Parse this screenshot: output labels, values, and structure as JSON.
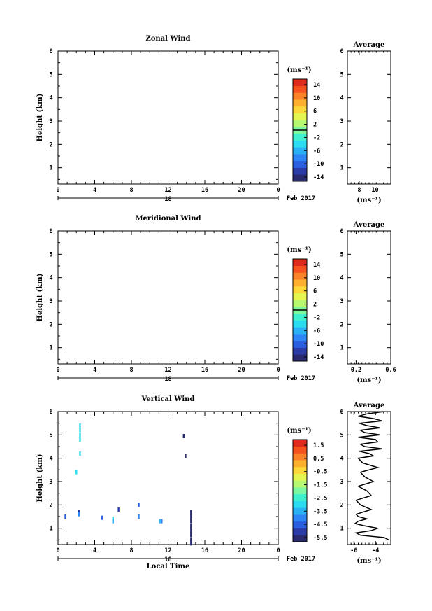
{
  "panels": [
    {
      "title": "Zonal Wind",
      "ylabel": "Height (km)",
      "yticks": [
        "1",
        "2",
        "3",
        "4",
        "5",
        "6"
      ],
      "xticks": [
        "0",
        "4",
        "8",
        "12",
        "16",
        "20",
        "0"
      ],
      "day": "18",
      "date_label": "Feb 2017",
      "cbar_unit": "(ms⁻¹)",
      "cbar_labels": [
        "14",
        "10",
        "6",
        "2",
        "-2",
        "-6",
        "-10",
        "-14"
      ],
      "avg_title": "Average",
      "avg_xticks": [
        "8",
        "10"
      ],
      "avg_xlabel": "(ms⁻¹)",
      "avg_yticks": [
        "1",
        "2",
        "3",
        "4",
        "5",
        "6"
      ]
    },
    {
      "title": "Meridional Wind",
      "ylabel": "Height (km)",
      "yticks": [
        "1",
        "2",
        "3",
        "4",
        "5",
        "6"
      ],
      "xticks": [
        "0",
        "4",
        "8",
        "12",
        "16",
        "20",
        "0"
      ],
      "day": "18",
      "date_label": "Feb 2017",
      "cbar_unit": "(ms⁻¹)",
      "cbar_labels": [
        "14",
        "10",
        "6",
        "2",
        "-2",
        "-6",
        "-10",
        "-14"
      ],
      "avg_title": "Average",
      "avg_xticks": [
        "0.2",
        "0.6"
      ],
      "avg_xlabel": "(ms⁻¹)",
      "avg_yticks": [
        "1",
        "2",
        "3",
        "4",
        "5",
        "6"
      ]
    },
    {
      "title": "Vertical Wind",
      "ylabel": "Height (km)",
      "xlabel": "Local Time",
      "yticks": [
        "1",
        "2",
        "3",
        "4",
        "5",
        "6"
      ],
      "xticks": [
        "0",
        "4",
        "8",
        "12",
        "16",
        "20",
        "0"
      ],
      "day": "18",
      "date_label": "Feb 2017",
      "cbar_unit": "(ms⁻¹)",
      "cbar_labels": [
        "1.5",
        "0.5",
        "-0.5",
        "-1.5",
        "-2.5",
        "-3.5",
        "-4.5",
        "-5.5"
      ],
      "avg_title": "Average",
      "avg_xticks": [
        "-6",
        "-4"
      ],
      "avg_xlabel": "(ms⁻¹)",
      "avg_yticks": [
        "1",
        "2",
        "3",
        "4",
        "5",
        "6"
      ]
    }
  ],
  "chart_data": [
    {
      "type": "heatmap",
      "title": "Zonal Wind",
      "xlabel": "",
      "ylabel": "Height (km)",
      "xlim": [
        0,
        24
      ],
      "ylim": [
        0.3,
        6.0
      ],
      "clim": [
        -16,
        16
      ],
      "cmap_colors": [
        "#2a2a6e",
        "#2b3ca8",
        "#2a5fe0",
        "#2d86f5",
        "#28b2f5",
        "#2adcf0",
        "#3ff0cf",
        "#7bf7a0",
        "#b6f970",
        "#e5f550",
        "#fcd838",
        "#fdb02e",
        "#fb8226",
        "#f5521e",
        "#e02a1e"
      ],
      "cells": [],
      "average": {
        "x": [],
        "y": [],
        "xlim": [
          6.5,
          12
        ]
      }
    },
    {
      "type": "heatmap",
      "title": "Meridional Wind",
      "xlabel": "",
      "ylabel": "Height (km)",
      "xlim": [
        0,
        24
      ],
      "ylim": [
        0.3,
        6.0
      ],
      "clim": [
        -16,
        16
      ],
      "cmap_colors": [
        "#2a2a6e",
        "#2b3ca8",
        "#2a5fe0",
        "#2d86f5",
        "#28b2f5",
        "#2adcf0",
        "#3ff0cf",
        "#7bf7a0",
        "#b6f970",
        "#e5f550",
        "#fcd838",
        "#fdb02e",
        "#fb8226",
        "#f5521e",
        "#e02a1e"
      ],
      "cells": [],
      "average": {
        "x": [],
        "y": [],
        "xlim": [
          0.1,
          0.6
        ]
      }
    },
    {
      "type": "heatmap",
      "title": "Vertical Wind",
      "xlabel": "Local Time",
      "ylabel": "Height (km)",
      "xlim": [
        0,
        24
      ],
      "ylim": [
        0.3,
        6.0
      ],
      "clim": [
        -6,
        2
      ],
      "cmap_colors": [
        "#2a2a6e",
        "#2b3ca8",
        "#2a5fe0",
        "#2d86f5",
        "#28b2f5",
        "#2adcf0",
        "#3ff0cf",
        "#7bf7a0",
        "#b6f970",
        "#e5f550",
        "#fcd838",
        "#fdb02e",
        "#fb8226",
        "#f5521e",
        "#e02a1e"
      ],
      "cells": [
        {
          "t": 2.4,
          "h": 5.4,
          "v": -3.0
        },
        {
          "t": 2.4,
          "h": 5.2,
          "v": -3.0
        },
        {
          "t": 2.4,
          "h": 5.0,
          "v": -3.0
        },
        {
          "t": 2.4,
          "h": 4.8,
          "v": -3.0
        },
        {
          "t": 2.4,
          "h": 4.2,
          "v": -3.2
        },
        {
          "t": 2.0,
          "h": 3.4,
          "v": -3.0
        },
        {
          "t": 13.7,
          "h": 4.95,
          "v": -5.5
        },
        {
          "t": 13.9,
          "h": 4.1,
          "v": -5.6
        },
        {
          "t": 0.8,
          "h": 1.5,
          "v": -4.7
        },
        {
          "t": 2.3,
          "h": 1.7,
          "v": -5.0
        },
        {
          "t": 2.3,
          "h": 1.6,
          "v": -4.2
        },
        {
          "t": 4.8,
          "h": 1.45,
          "v": -4.5
        },
        {
          "t": 6.0,
          "h": 1.4,
          "v": -3.2
        },
        {
          "t": 6.0,
          "h": 1.3,
          "v": -3.4
        },
        {
          "t": 6.6,
          "h": 1.8,
          "v": -5.2
        },
        {
          "t": 8.8,
          "h": 2.0,
          "v": -4.8
        },
        {
          "t": 8.8,
          "h": 1.5,
          "v": -4.3
        },
        {
          "t": 11.1,
          "h": 1.3,
          "v": -3.8
        },
        {
          "t": 11.3,
          "h": 1.3,
          "v": -4.0
        },
        {
          "t": 14.5,
          "h": 1.7,
          "v": -5.6
        },
        {
          "t": 14.5,
          "h": 1.5,
          "v": -5.6
        },
        {
          "t": 14.5,
          "h": 1.3,
          "v": -5.6
        },
        {
          "t": 14.5,
          "h": 1.1,
          "v": -5.6
        },
        {
          "t": 14.5,
          "h": 0.9,
          "v": -5.6
        },
        {
          "t": 14.5,
          "h": 0.7,
          "v": -5.6
        },
        {
          "t": 14.5,
          "h": 0.5,
          "v": -5.6
        },
        {
          "t": 14.5,
          "h": 0.35,
          "v": -5.6
        }
      ],
      "average": {
        "xlim": [
          -6.6,
          -2.6
        ],
        "x": [
          -3.2,
          -4.8,
          -5.6,
          -4.2,
          -3.4,
          -5.5,
          -4.8,
          -3.6,
          -5.4,
          -5.0,
          -3.6,
          -5.6,
          -4.0,
          -3.8,
          -5.4,
          -5.0,
          -3.4,
          -5.5,
          -4.6,
          -4.2,
          -5.6,
          -5.2,
          -3.8,
          -5.4,
          -5.0,
          -4.2,
          -5.6,
          -4.8,
          -4.4,
          -5.8,
          -5.4,
          -4.4,
          -5.8,
          -5.6,
          -4.8,
          -5.6,
          -5.9,
          -5.0,
          -3.8,
          -4.4,
          -5.8,
          -5.4,
          -3.2,
          -2.8
        ],
        "y": [
          6.0,
          5.9,
          5.8,
          5.7,
          5.6,
          5.5,
          5.4,
          5.3,
          5.2,
          5.1,
          5.0,
          4.9,
          4.8,
          4.7,
          4.6,
          4.5,
          4.4,
          4.3,
          4.2,
          4.1,
          4.0,
          3.8,
          3.6,
          3.4,
          3.2,
          3.0,
          2.8,
          2.6,
          2.4,
          2.2,
          2.0,
          1.8,
          1.6,
          1.5,
          1.4,
          1.3,
          1.2,
          1.1,
          1.0,
          0.9,
          0.8,
          0.7,
          0.6,
          0.5
        ]
      }
    }
  ]
}
